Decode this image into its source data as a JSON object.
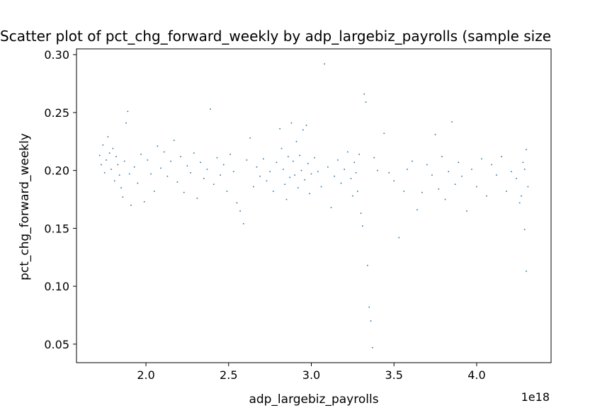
{
  "chart_data": {
    "type": "scatter",
    "title": "Scatter plot of pct_chg_forward_weekly by adp_largebiz_payrolls (sample size",
    "xlabel": "adp_largebiz_payrolls",
    "ylabel": "pct_chg_forward_weekly",
    "x_offset_label": "1e18",
    "xlim": [
      1.58,
      4.45
    ],
    "ylim": [
      0.034,
      0.305
    ],
    "x_ticks": [
      2.0,
      2.5,
      3.0,
      3.5,
      4.0
    ],
    "x_tick_labels": [
      "2.0",
      "2.5",
      "3.0",
      "3.5",
      "4.0"
    ],
    "y_ticks": [
      0.05,
      0.1,
      0.15,
      0.2,
      0.25,
      0.3
    ],
    "y_tick_labels": [
      "0.05",
      "0.10",
      "0.15",
      "0.20",
      "0.25",
      "0.30"
    ],
    "grid": false,
    "marker_color": "#1f77b4",
    "x_unit_scale": "1e18",
    "points": [
      [
        1.72,
        0.213
      ],
      [
        1.73,
        0.205
      ],
      [
        1.74,
        0.222
      ],
      [
        1.75,
        0.198
      ],
      [
        1.76,
        0.209
      ],
      [
        1.77,
        0.229
      ],
      [
        1.78,
        0.215
      ],
      [
        1.79,
        0.201
      ],
      [
        1.8,
        0.219
      ],
      [
        1.81,
        0.191
      ],
      [
        1.82,
        0.212
      ],
      [
        1.83,
        0.205
      ],
      [
        1.84,
        0.196
      ],
      [
        1.85,
        0.185
      ],
      [
        1.86,
        0.177
      ],
      [
        1.87,
        0.208
      ],
      [
        1.88,
        0.241
      ],
      [
        1.89,
        0.251
      ],
      [
        1.9,
        0.197
      ],
      [
        1.91,
        0.17
      ],
      [
        1.93,
        0.203
      ],
      [
        1.95,
        0.189
      ],
      [
        1.97,
        0.214
      ],
      [
        1.99,
        0.173
      ],
      [
        2.01,
        0.209
      ],
      [
        2.03,
        0.197
      ],
      [
        2.05,
        0.182
      ],
      [
        2.07,
        0.221
      ],
      [
        2.09,
        0.202
      ],
      [
        2.11,
        0.216
      ],
      [
        2.13,
        0.195
      ],
      [
        2.15,
        0.208
      ],
      [
        2.17,
        0.226
      ],
      [
        2.19,
        0.19
      ],
      [
        2.21,
        0.212
      ],
      [
        2.23,
        0.181
      ],
      [
        2.25,
        0.204
      ],
      [
        2.27,
        0.198
      ],
      [
        2.29,
        0.215
      ],
      [
        2.31,
        0.176
      ],
      [
        2.33,
        0.207
      ],
      [
        2.35,
        0.193
      ],
      [
        2.37,
        0.201
      ],
      [
        2.39,
        0.253
      ],
      [
        2.41,
        0.188
      ],
      [
        2.43,
        0.211
      ],
      [
        2.45,
        0.196
      ],
      [
        2.47,
        0.205
      ],
      [
        2.49,
        0.182
      ],
      [
        2.51,
        0.214
      ],
      [
        2.53,
        0.199
      ],
      [
        2.55,
        0.172
      ],
      [
        2.57,
        0.165
      ],
      [
        2.59,
        0.154
      ],
      [
        2.61,
        0.209
      ],
      [
        2.63,
        0.228
      ],
      [
        2.65,
        0.186
      ],
      [
        2.67,
        0.203
      ],
      [
        2.69,
        0.195
      ],
      [
        2.71,
        0.21
      ],
      [
        2.73,
        0.191
      ],
      [
        2.75,
        0.199
      ],
      [
        2.77,
        0.182
      ],
      [
        2.79,
        0.207
      ],
      [
        2.81,
        0.236
      ],
      [
        2.82,
        0.219
      ],
      [
        2.83,
        0.201
      ],
      [
        2.84,
        0.188
      ],
      [
        2.85,
        0.175
      ],
      [
        2.86,
        0.212
      ],
      [
        2.87,
        0.194
      ],
      [
        2.88,
        0.241
      ],
      [
        2.89,
        0.208
      ],
      [
        2.9,
        0.196
      ],
      [
        2.91,
        0.225
      ],
      [
        2.92,
        0.185
      ],
      [
        2.93,
        0.213
      ],
      [
        2.94,
        0.2
      ],
      [
        2.95,
        0.235
      ],
      [
        2.96,
        0.192
      ],
      [
        2.97,
        0.239
      ],
      [
        2.98,
        0.206
      ],
      [
        2.99,
        0.18
      ],
      [
        3.0,
        0.197
      ],
      [
        3.02,
        0.211
      ],
      [
        3.04,
        0.199
      ],
      [
        3.06,
        0.186
      ],
      [
        3.08,
        0.292
      ],
      [
        3.1,
        0.203
      ],
      [
        3.12,
        0.168
      ],
      [
        3.14,
        0.195
      ],
      [
        3.16,
        0.209
      ],
      [
        3.18,
        0.189
      ],
      [
        3.2,
        0.201
      ],
      [
        3.22,
        0.216
      ],
      [
        3.24,
        0.193
      ],
      [
        3.25,
        0.178
      ],
      [
        3.26,
        0.207
      ],
      [
        3.27,
        0.198
      ],
      [
        3.28,
        0.182
      ],
      [
        3.29,
        0.214
      ],
      [
        3.3,
        0.163
      ],
      [
        3.31,
        0.152
      ],
      [
        3.32,
        0.266
      ],
      [
        3.33,
        0.259
      ],
      [
        3.34,
        0.118
      ],
      [
        3.35,
        0.082
      ],
      [
        3.36,
        0.07
      ],
      [
        3.37,
        0.047
      ],
      [
        3.38,
        0.211
      ],
      [
        3.4,
        0.2
      ],
      [
        3.44,
        0.232
      ],
      [
        3.47,
        0.198
      ],
      [
        3.5,
        0.191
      ],
      [
        3.53,
        0.142
      ],
      [
        3.56,
        0.182
      ],
      [
        3.58,
        0.201
      ],
      [
        3.61,
        0.208
      ],
      [
        3.64,
        0.166
      ],
      [
        3.67,
        0.181
      ],
      [
        3.7,
        0.205
      ],
      [
        3.73,
        0.196
      ],
      [
        3.75,
        0.231
      ],
      [
        3.77,
        0.184
      ],
      [
        3.79,
        0.212
      ],
      [
        3.81,
        0.175
      ],
      [
        3.83,
        0.199
      ],
      [
        3.85,
        0.242
      ],
      [
        3.87,
        0.188
      ],
      [
        3.89,
        0.207
      ],
      [
        3.91,
        0.195
      ],
      [
        3.94,
        0.165
      ],
      [
        3.97,
        0.201
      ],
      [
        4.0,
        0.186
      ],
      [
        4.03,
        0.21
      ],
      [
        4.06,
        0.178
      ],
      [
        4.09,
        0.205
      ],
      [
        4.12,
        0.196
      ],
      [
        4.15,
        0.212
      ],
      [
        4.18,
        0.182
      ],
      [
        4.21,
        0.199
      ],
      [
        4.24,
        0.193
      ],
      [
        4.26,
        0.172
      ],
      [
        4.28,
        0.207
      ],
      [
        4.29,
        0.149
      ],
      [
        4.3,
        0.113
      ],
      [
        4.3,
        0.218
      ],
      [
        4.31,
        0.186
      ],
      [
        4.29,
        0.201
      ],
      [
        4.27,
        0.178
      ]
    ]
  }
}
